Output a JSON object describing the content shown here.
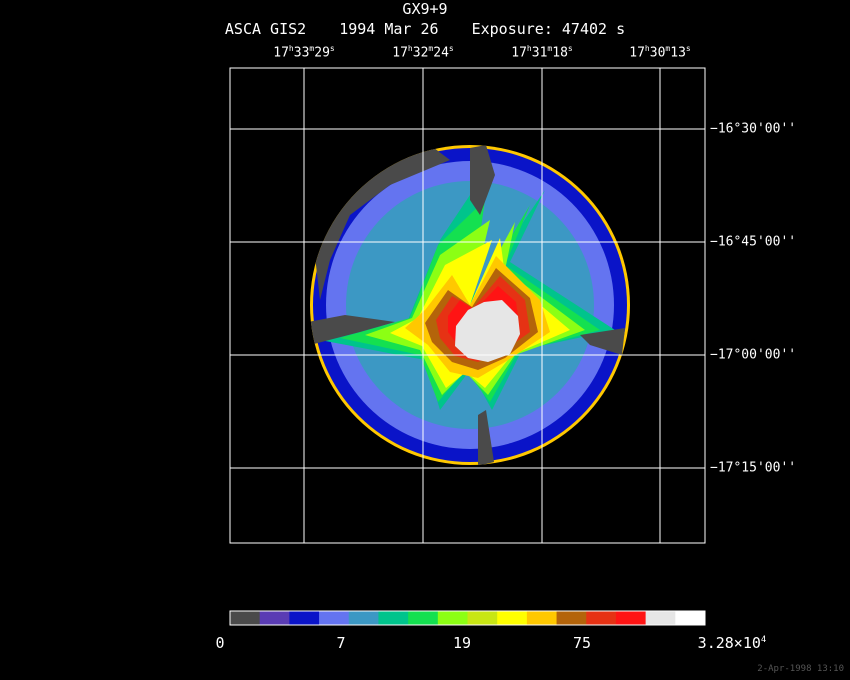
{
  "title": {
    "line1": "GX9+9",
    "instrument": "ASCA GIS2",
    "date": "1994 Mar 26",
    "exposure": "Exposure: 47402 s"
  },
  "ra_labels": [
    {
      "h": "17",
      "m": "33",
      "s": "29"
    },
    {
      "h": "17",
      "m": "32",
      "s": "24"
    },
    {
      "h": "17",
      "m": "31",
      "s": "18"
    },
    {
      "h": "17",
      "m": "30",
      "s": "13"
    }
  ],
  "dec_labels": [
    "−16°30'00''",
    "−16°45'00''",
    "−17°00'00''",
    "−17°15'00''"
  ],
  "colorbar": {
    "colors": [
      "#4a4a4a",
      "#5a3cb4",
      "#0a14c8",
      "#6474f0",
      "#3c98c4",
      "#00c48c",
      "#14e050",
      "#8cff14",
      "#c8e614",
      "#ffff00",
      "#ffc800",
      "#b4640a",
      "#e63214",
      "#ff1414",
      "#e6e6e6",
      "#ffffff"
    ],
    "labels": [
      "0",
      "7",
      "19",
      "75"
    ],
    "max_base": "3.28×10",
    "max_exp": "4"
  },
  "footer": "2-Apr-1998 13:10"
}
